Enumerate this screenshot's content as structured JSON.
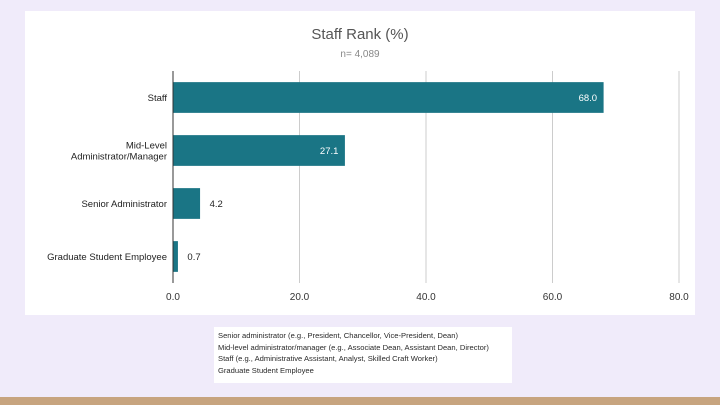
{
  "chart_data": {
    "type": "bar",
    "orientation": "horizontal",
    "title": "Staff Rank (%)",
    "subtitle": "n= 4,089",
    "categories": [
      "Staff",
      "Mid-Level\nAdministrator/Manager",
      "Senior Administrator",
      "Graduate Student Employee"
    ],
    "values": [
      68.0,
      27.1,
      4.2,
      0.7
    ],
    "value_labels": [
      "68.0",
      "27.1",
      "4.2",
      "0.7"
    ],
    "xlim": [
      0,
      80
    ],
    "xticks": [
      0,
      20,
      40,
      60,
      80
    ],
    "xtick_labels": [
      "0.0",
      "20.0",
      "40.0",
      "60.0",
      "80.0"
    ],
    "xlabel": "",
    "ylabel": "",
    "grid": true,
    "bar_color": "#1a7585"
  },
  "legend_note": {
    "lines": [
      "Senior administrator (e.g., President, Chancellor, Vice-President, Dean)",
      "Mid-level administrator/manager (e.g., Associate Dean, Assistant Dean, Director)",
      "Staff (e.g., Administrative Assistant, Analyst, Skilled Craft Worker)",
      "Graduate Student Employee"
    ]
  },
  "colors": {
    "background": "#f0ebfa",
    "card": "#ffffff",
    "footer": "#c7a47f"
  }
}
